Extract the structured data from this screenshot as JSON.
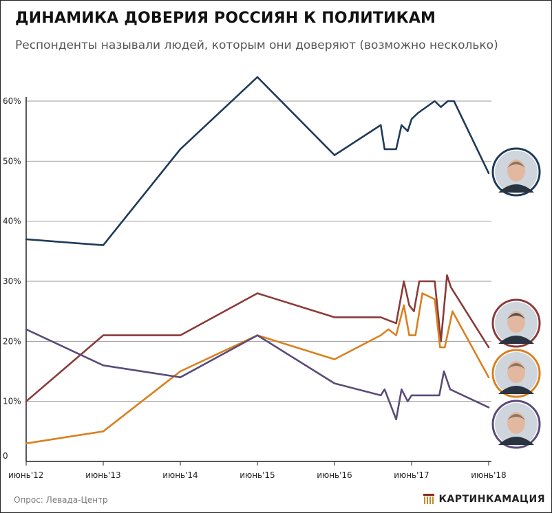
{
  "header": {
    "title": "ДИНАМИКА ДОВЕРИЯ РОССИЯН К ПОЛИТИКАМ",
    "subtitle": "Респонденты называли людей, которым они доверяют (возможно несколько)"
  },
  "footer": {
    "source": "Опрос: Левада-Центр",
    "brand": "КАРТИНКАМАЦИЯ",
    "brand_color": "#8b2a1e"
  },
  "chart_data": {
    "type": "line",
    "ylim": [
      0,
      60
    ],
    "yticks": [
      0,
      10,
      20,
      30,
      40,
      50,
      60
    ],
    "ytick_labels": [
      "0",
      "10%",
      "20%",
      "30%",
      "40%",
      "50%",
      "60%"
    ],
    "xlim": [
      2012.5,
      2018.5
    ],
    "xticks": [
      2012.5,
      2013.5,
      2014.5,
      2015.5,
      2016.5,
      2017.5,
      2018.5
    ],
    "xtick_labels": [
      "июнь'12",
      "июнь'13",
      "июнь'14",
      "июнь'15",
      "июнь'16",
      "июнь'17",
      "июнь'18"
    ],
    "grid": true,
    "series": [
      {
        "color": "#1f3a58",
        "portrait": "putin-portrait",
        "x": [
          2012.5,
          2013.5,
          2014.5,
          2015.5,
          2016.5,
          2017.1,
          2017.15,
          2017.3,
          2017.37,
          2017.45,
          2017.5,
          2017.58,
          2017.8,
          2017.88,
          2017.97,
          2018.05,
          2018.5
        ],
        "y": [
          37,
          36,
          52,
          64,
          51,
          56,
          52,
          52,
          56,
          55,
          57,
          58,
          60,
          59,
          60,
          60,
          48
        ]
      },
      {
        "color": "#8b3a3a",
        "portrait": "shoigu-portrait",
        "x": [
          2012.5,
          2013.5,
          2014.5,
          2015.5,
          2016.5,
          2017.1,
          2017.3,
          2017.4,
          2017.47,
          2017.53,
          2017.6,
          2017.66,
          2017.8,
          2017.88,
          2017.96,
          2018.01,
          2018.5
        ],
        "y": [
          10,
          21,
          21,
          28,
          24,
          24,
          23,
          30,
          26,
          25,
          30,
          30,
          30,
          20,
          31,
          29,
          19
        ]
      },
      {
        "color": "#d9801f",
        "portrait": "lavrov-portrait",
        "x": [
          2012.5,
          2013.5,
          2014.5,
          2015.5,
          2016.5,
          2017.1,
          2017.2,
          2017.3,
          2017.4,
          2017.47,
          2017.55,
          2017.64,
          2017.8,
          2017.87,
          2017.93,
          2018.03,
          2018.5
        ],
        "y": [
          3,
          5,
          15,
          21,
          17,
          21,
          22,
          21,
          26,
          21,
          21,
          28,
          27,
          19,
          19,
          25,
          14
        ]
      },
      {
        "color": "#5a4b78",
        "portrait": "medvedev-portrait",
        "x": [
          2012.5,
          2013.5,
          2014.5,
          2015.5,
          2016.5,
          2017.1,
          2017.15,
          2017.3,
          2017.37,
          2017.45,
          2017.5,
          2017.6,
          2017.86,
          2017.92,
          2018.0,
          2018.5
        ],
        "y": [
          22,
          16,
          14,
          21,
          13,
          11,
          12,
          7,
          12,
          10,
          11,
          11,
          11,
          15,
          12,
          9
        ]
      }
    ]
  }
}
